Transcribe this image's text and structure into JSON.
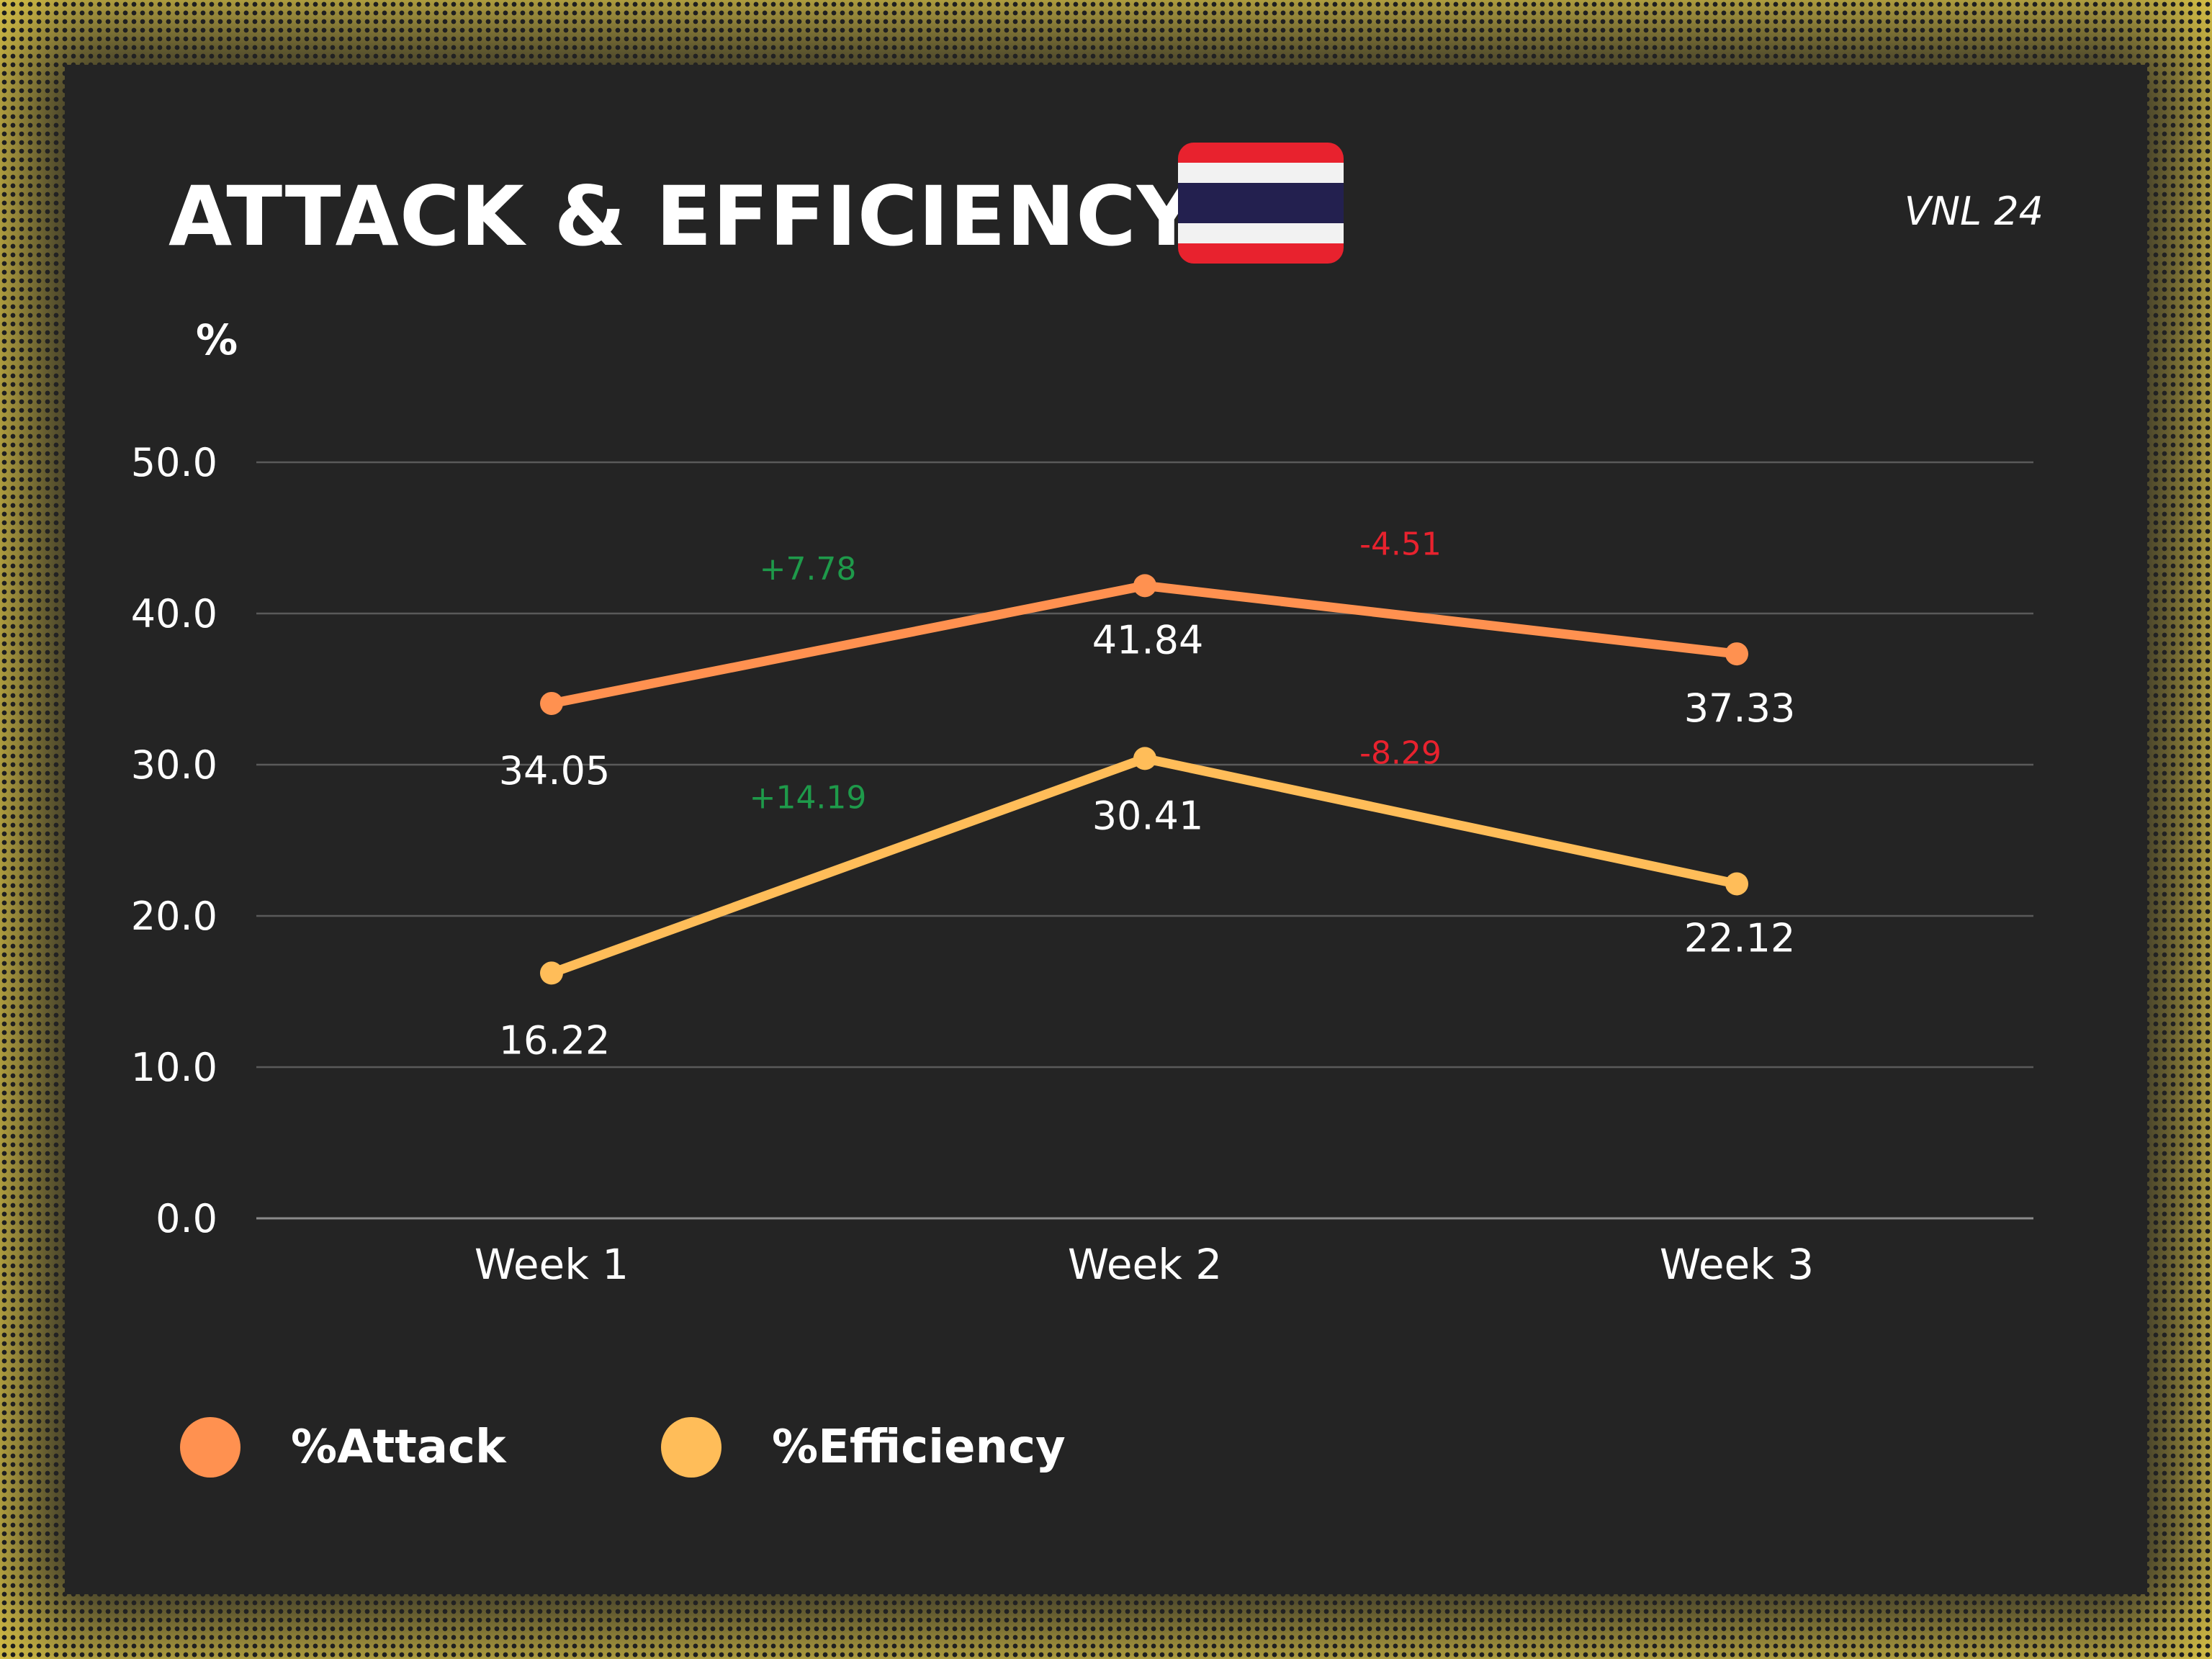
{
  "header": {
    "title": "ATTACK & EFFICIENCY",
    "subtitle": "VNL 24",
    "flag_icon": "thailand-flag-icon"
  },
  "colors": {
    "background": "#242424",
    "text": "#ffffff",
    "grid": "#5a5a5a",
    "positive_change": "#1e9a4a",
    "negative_change": "#e8222e",
    "flag_red": "#e8222e",
    "flag_white": "#f2f2f2",
    "flag_blue": "#23204f"
  },
  "chart_data": {
    "type": "line",
    "ylabel": "%",
    "xlabel": "",
    "categories": [
      "Week 1",
      "Week 2",
      "Week 3"
    ],
    "ylim": [
      0,
      50
    ],
    "yticks": [
      "0.0",
      "10.0",
      "20.0",
      "30.0",
      "40.0",
      "50.0"
    ],
    "grid": true,
    "legend_position": "bottom-left",
    "series": [
      {
        "name": "%Attack",
        "color": "#ff9150",
        "values": [
          34.05,
          41.84,
          37.33
        ],
        "value_labels": [
          "34.05",
          "41.84",
          "37.33"
        ],
        "changes": [
          "+7.78",
          "-4.51"
        ]
      },
      {
        "name": "%Efficiency",
        "color": "#ffbd59",
        "values": [
          16.22,
          30.41,
          22.12
        ],
        "value_labels": [
          "16.22",
          "30.41",
          "22.12"
        ],
        "changes": [
          "+14.19",
          "-8.29"
        ]
      }
    ]
  }
}
